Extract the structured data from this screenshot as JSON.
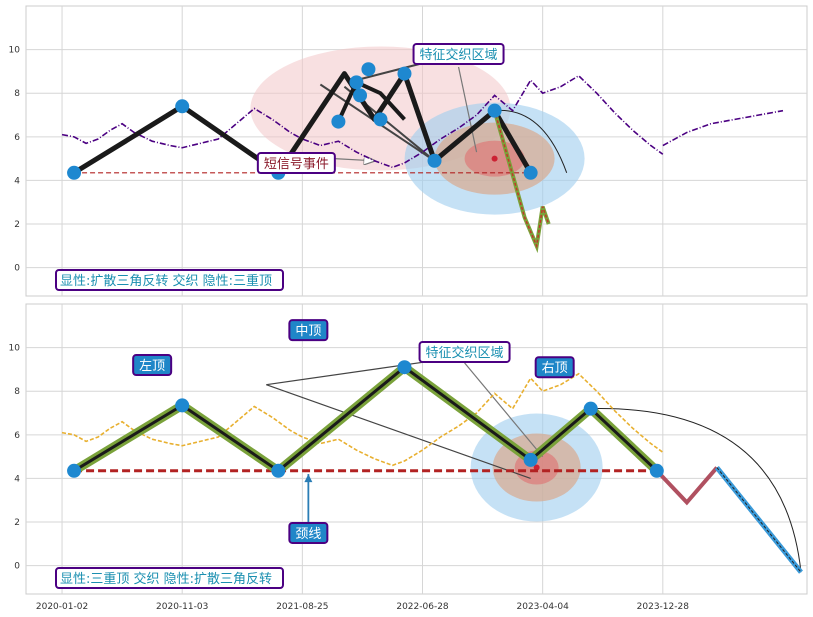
{
  "chart_data": [
    {
      "type": "line",
      "panel": "top",
      "ylim": [
        -1.3,
        12
      ],
      "yticks": [
        0,
        2,
        4,
        6,
        8,
        10
      ],
      "grid": true,
      "neckline_y": 4.35,
      "series": [
        {
          "color": "#4b0082",
          "style": "dash-dot",
          "x": [
            0,
            0.1,
            0.2,
            0.3,
            0.4,
            0.5,
            0.6,
            0.75,
            0.9,
            1.0,
            1.15,
            1.3,
            1.45,
            1.6,
            1.75,
            1.9,
            2.0,
            2.15,
            2.3,
            2.45,
            2.6,
            2.75,
            2.85,
            3.0,
            3.15,
            3.3,
            3.45,
            3.6,
            3.75,
            3.9,
            4.0,
            4.15,
            4.3,
            4.45,
            4.6,
            4.75,
            4.9,
            5.0
          ],
          "y": [
            6.1,
            6.0,
            5.7,
            5.9,
            6.3,
            6.6,
            6.2,
            5.8,
            5.6,
            5.5,
            5.7,
            5.9,
            6.6,
            7.3,
            6.8,
            6.2,
            5.9,
            5.6,
            5.8,
            5.3,
            4.9,
            4.6,
            4.8,
            5.3,
            5.9,
            6.4,
            7.0,
            7.9,
            7.2,
            8.6,
            8.0,
            8.3,
            8.8,
            8.0,
            7.1,
            6.3,
            5.6,
            5.2
          ]
        },
        {
          "color": "#4b0082",
          "style": "dash-dot",
          "x": [
            5.0,
            5.2,
            5.4,
            5.6,
            5.8,
            6.0
          ],
          "y": [
            5.6,
            6.2,
            6.6,
            6.8,
            7.0,
            7.2
          ]
        }
      ],
      "pattern_main": {
        "x": [
          0.1,
          1.0,
          1.8,
          2.35,
          2.6,
          2.85,
          3.1,
          3.6,
          3.9
        ],
        "y": [
          4.35,
          7.4,
          4.35,
          8.9,
          6.8,
          8.9,
          4.9,
          7.2,
          4.35
        ]
      },
      "pattern_inner": {
        "x": [
          2.3,
          2.45,
          2.65,
          2.85
        ],
        "y": [
          6.7,
          8.5,
          8.0,
          6.8
        ]
      },
      "markers": {
        "x": [
          0.1,
          1.0,
          1.8,
          2.3,
          2.45,
          2.48,
          2.55,
          2.65,
          2.85,
          3.1,
          3.6,
          3.9
        ],
        "y": [
          4.35,
          7.4,
          4.35,
          6.7,
          8.5,
          7.9,
          9.1,
          6.8,
          8.9,
          4.9,
          7.2,
          4.35
        ]
      },
      "projection": {
        "x": [
          3.6,
          3.85,
          3.95,
          4.0,
          4.05
        ],
        "y": [
          7.2,
          2.3,
          1.0,
          2.8,
          2.0
        ]
      },
      "annotations": [
        {
          "text": "短信号事件",
          "x": 1.95,
          "y": 4.8
        },
        {
          "text": "特征交织区域",
          "x": 3.3,
          "y": 9.8
        }
      ],
      "corner_label": "显性:扩散三角反转 交织 隐性:三重顶"
    },
    {
      "type": "line",
      "panel": "bottom",
      "ylim": [
        -1.3,
        12
      ],
      "yticks": [
        0,
        2,
        4,
        6,
        8,
        10
      ],
      "grid": true,
      "neckline_y": 4.35,
      "series": [
        {
          "color": "#e8b030",
          "style": "dashed",
          "x": [
            0,
            0.1,
            0.2,
            0.3,
            0.4,
            0.5,
            0.6,
            0.75,
            0.9,
            1.0,
            1.15,
            1.3,
            1.45,
            1.6,
            1.75,
            1.9,
            2.0,
            2.15,
            2.3,
            2.45,
            2.6,
            2.75,
            2.85,
            3.0,
            3.15,
            3.3,
            3.45,
            3.6,
            3.75,
            3.9,
            4.0,
            4.15,
            4.3,
            4.45,
            4.6,
            4.75,
            4.9,
            5.0
          ],
          "y": [
            6.1,
            6.0,
            5.7,
            5.9,
            6.3,
            6.6,
            6.2,
            5.8,
            5.6,
            5.5,
            5.7,
            5.9,
            6.6,
            7.3,
            6.8,
            6.2,
            5.9,
            5.6,
            5.8,
            5.3,
            4.9,
            4.6,
            4.8,
            5.3,
            5.9,
            6.4,
            7.0,
            7.9,
            7.2,
            8.6,
            8.0,
            8.3,
            8.8,
            8.0,
            7.1,
            6.3,
            5.6,
            5.2
          ]
        }
      ],
      "pattern_main": {
        "x": [
          0.1,
          1.0,
          1.8,
          2.85,
          3.9,
          4.4,
          4.95
        ],
        "y": [
          4.35,
          7.35,
          4.35,
          9.1,
          4.85,
          7.2,
          4.35
        ]
      },
      "markers": {
        "x": [
          0.1,
          1.0,
          1.8,
          2.85,
          3.9,
          4.4,
          4.95
        ],
        "y": [
          4.35,
          7.35,
          4.35,
          9.1,
          4.85,
          7.2,
          4.35
        ]
      },
      "projection": {
        "x": [
          4.95,
          5.2,
          5.45,
          6.15
        ],
        "y": [
          4.35,
          2.9,
          4.5,
          -0.3
        ]
      },
      "annotations": [
        {
          "text": "左顶",
          "x": 0.75,
          "y": 9.2
        },
        {
          "text": "中顶",
          "x": 2.05,
          "y": 10.8
        },
        {
          "text": "特征交织区域",
          "x": 3.35,
          "y": 9.8
        },
        {
          "text": "右顶",
          "x": 4.1,
          "y": 9.1
        },
        {
          "text": "颈线",
          "x": 2.05,
          "y": 1.5
        }
      ],
      "corner_label": "显性:三重顶 交织 隐性:扩散三角反转"
    }
  ],
  "x_axis": {
    "range": [
      -0.3,
      6.2
    ],
    "ticks": [
      0,
      1,
      2,
      3,
      4,
      5
    ],
    "labels": [
      "2020-01-02",
      "2020-11-03",
      "2021-08-25",
      "2022-06-28",
      "2023-04-04",
      "2023-12-28"
    ]
  },
  "colors": {
    "pattern": "#1a1a1a",
    "marker": "#1e88d0",
    "neckline": "#b22222",
    "box_border": "#4b0082",
    "box_text": "#1a8fb0",
    "blue_box": "#1f86c8"
  }
}
